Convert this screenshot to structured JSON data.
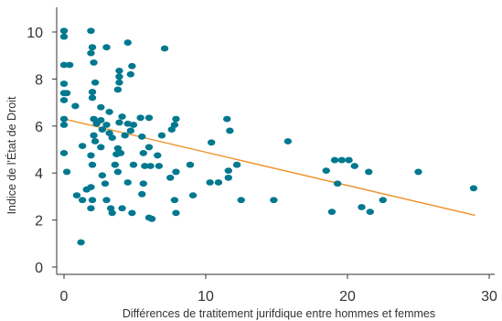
{
  "chart_data": {
    "type": "scatter",
    "title": "",
    "xlabel": "Différences de tratitement jurifdique entre hommes et femmes",
    "ylabel": "Indice de l'État de Droit",
    "xlim": [
      -0.5,
      30.5
    ],
    "ylim": [
      -0.3,
      10.4
    ],
    "xticks": [
      0,
      10,
      20,
      30
    ],
    "yticks": [
      0,
      2,
      4,
      6,
      8,
      10
    ],
    "grid": false,
    "legend": "none",
    "colors": {
      "points": "#00788f",
      "trend": "#f0912a",
      "axis": "#333333"
    },
    "trendline": {
      "x": [
        0,
        29
      ],
      "y": [
        6.3,
        2.2
      ]
    },
    "points": [
      {
        "x": 0,
        "y": 10.05
      },
      {
        "x": 0,
        "y": 9.8
      },
      {
        "x": 0,
        "y": 8.6
      },
      {
        "x": 0.4,
        "y": 8.6
      },
      {
        "x": 0,
        "y": 7.8
      },
      {
        "x": 0,
        "y": 7.4
      },
      {
        "x": 0.2,
        "y": 7.4
      },
      {
        "x": 0,
        "y": 7.1
      },
      {
        "x": 0.8,
        "y": 6.85
      },
      {
        "x": 0,
        "y": 6.3
      },
      {
        "x": 0,
        "y": 6.05
      },
      {
        "x": 0,
        "y": 4.85
      },
      {
        "x": 0.2,
        "y": 4.05
      },
      {
        "x": 0.9,
        "y": 3.05
      },
      {
        "x": 1.3,
        "y": 2.85
      },
      {
        "x": 1.2,
        "y": 1.05
      },
      {
        "x": 1.3,
        "y": 5.15
      },
      {
        "x": 1.6,
        "y": 3.3
      },
      {
        "x": 1.9,
        "y": 10.05
      },
      {
        "x": 1.9,
        "y": 9.1
      },
      {
        "x": 2.0,
        "y": 9.35
      },
      {
        "x": 2.1,
        "y": 8.7
      },
      {
        "x": 2.2,
        "y": 7.85
      },
      {
        "x": 2.0,
        "y": 7.45
      },
      {
        "x": 2.0,
        "y": 7.2
      },
      {
        "x": 2.1,
        "y": 6.3
      },
      {
        "x": 2.3,
        "y": 6.1
      },
      {
        "x": 2.6,
        "y": 6.25
      },
      {
        "x": 2.1,
        "y": 5.6
      },
      {
        "x": 2.2,
        "y": 5.35
      },
      {
        "x": 1.9,
        "y": 4.75
      },
      {
        "x": 2.0,
        "y": 4.35
      },
      {
        "x": 1.9,
        "y": 3.4
      },
      {
        "x": 2.0,
        "y": 2.85
      },
      {
        "x": 1.9,
        "y": 2.5
      },
      {
        "x": 2.6,
        "y": 6.8
      },
      {
        "x": 2.7,
        "y": 5.85
      },
      {
        "x": 3.0,
        "y": 9.35
      },
      {
        "x": 3.0,
        "y": 6.05
      },
      {
        "x": 3.2,
        "y": 5.7
      },
      {
        "x": 3.4,
        "y": 5.5
      },
      {
        "x": 3.2,
        "y": 6.6
      },
      {
        "x": 2.6,
        "y": 5.1
      },
      {
        "x": 2.7,
        "y": 3.9
      },
      {
        "x": 2.9,
        "y": 3.55
      },
      {
        "x": 3.0,
        "y": 2.85
      },
      {
        "x": 3.3,
        "y": 2.5
      },
      {
        "x": 3.4,
        "y": 2.3
      },
      {
        "x": 3.6,
        "y": 4.35
      },
      {
        "x": 3.8,
        "y": 4.05
      },
      {
        "x": 3.7,
        "y": 4.8
      },
      {
        "x": 3.8,
        "y": 5.05
      },
      {
        "x": 3.9,
        "y": 6.15
      },
      {
        "x": 3.9,
        "y": 7.85
      },
      {
        "x": 3.9,
        "y": 8.1
      },
      {
        "x": 3.9,
        "y": 8.35
      },
      {
        "x": 3.8,
        "y": 7.55
      },
      {
        "x": 4.1,
        "y": 6.4
      },
      {
        "x": 4.3,
        "y": 5.6
      },
      {
        "x": 4.0,
        "y": 4.85
      },
      {
        "x": 4.1,
        "y": 2.5
      },
      {
        "x": 4.5,
        "y": 9.55
      },
      {
        "x": 4.5,
        "y": 6.1
      },
      {
        "x": 4.7,
        "y": 8.2
      },
      {
        "x": 4.8,
        "y": 8.55
      },
      {
        "x": 4.9,
        "y": 6.05
      },
      {
        "x": 4.7,
        "y": 5.8
      },
      {
        "x": 4.9,
        "y": 4.35
      },
      {
        "x": 4.5,
        "y": 3.6
      },
      {
        "x": 4.8,
        "y": 2.3
      },
      {
        "x": 5.4,
        "y": 6.35
      },
      {
        "x": 5.5,
        "y": 5.55
      },
      {
        "x": 5.6,
        "y": 4.85
      },
      {
        "x": 5.7,
        "y": 4.3
      },
      {
        "x": 5.6,
        "y": 3.55
      },
      {
        "x": 5.5,
        "y": 3.1
      },
      {
        "x": 6.0,
        "y": 6.35
      },
      {
        "x": 6.0,
        "y": 5.1
      },
      {
        "x": 6.1,
        "y": 4.3
      },
      {
        "x": 6.2,
        "y": 2.05
      },
      {
        "x": 6.0,
        "y": 2.1
      },
      {
        "x": 6.6,
        "y": 4.75
      },
      {
        "x": 6.7,
        "y": 4.3
      },
      {
        "x": 6.9,
        "y": 5.6
      },
      {
        "x": 7.1,
        "y": 9.3
      },
      {
        "x": 7.5,
        "y": 3.8
      },
      {
        "x": 7.6,
        "y": 5.85
      },
      {
        "x": 7.8,
        "y": 6.05
      },
      {
        "x": 7.9,
        "y": 6.3
      },
      {
        "x": 7.9,
        "y": 4.05
      },
      {
        "x": 7.8,
        "y": 2.85
      },
      {
        "x": 7.9,
        "y": 2.3
      },
      {
        "x": 8.9,
        "y": 4.35
      },
      {
        "x": 9.1,
        "y": 3.05
      },
      {
        "x": 10.4,
        "y": 5.3
      },
      {
        "x": 10.3,
        "y": 3.6
      },
      {
        "x": 10.9,
        "y": 3.6
      },
      {
        "x": 11.5,
        "y": 6.3
      },
      {
        "x": 11.7,
        "y": 5.8
      },
      {
        "x": 11.6,
        "y": 4.1
      },
      {
        "x": 11.6,
        "y": 3.8
      },
      {
        "x": 12.2,
        "y": 4.35
      },
      {
        "x": 12.5,
        "y": 2.85
      },
      {
        "x": 14.8,
        "y": 2.85
      },
      {
        "x": 15.8,
        "y": 5.35
      },
      {
        "x": 18.5,
        "y": 4.1
      },
      {
        "x": 18.9,
        "y": 2.35
      },
      {
        "x": 19.1,
        "y": 4.55
      },
      {
        "x": 19.3,
        "y": 3.55
      },
      {
        "x": 19.6,
        "y": 4.55
      },
      {
        "x": 20.1,
        "y": 4.55
      },
      {
        "x": 20.5,
        "y": 4.3
      },
      {
        "x": 21.0,
        "y": 2.55
      },
      {
        "x": 21.5,
        "y": 4.05
      },
      {
        "x": 21.6,
        "y": 2.35
      },
      {
        "x": 22.5,
        "y": 2.85
      },
      {
        "x": 25.0,
        "y": 4.05
      },
      {
        "x": 28.9,
        "y": 3.35
      }
    ]
  }
}
